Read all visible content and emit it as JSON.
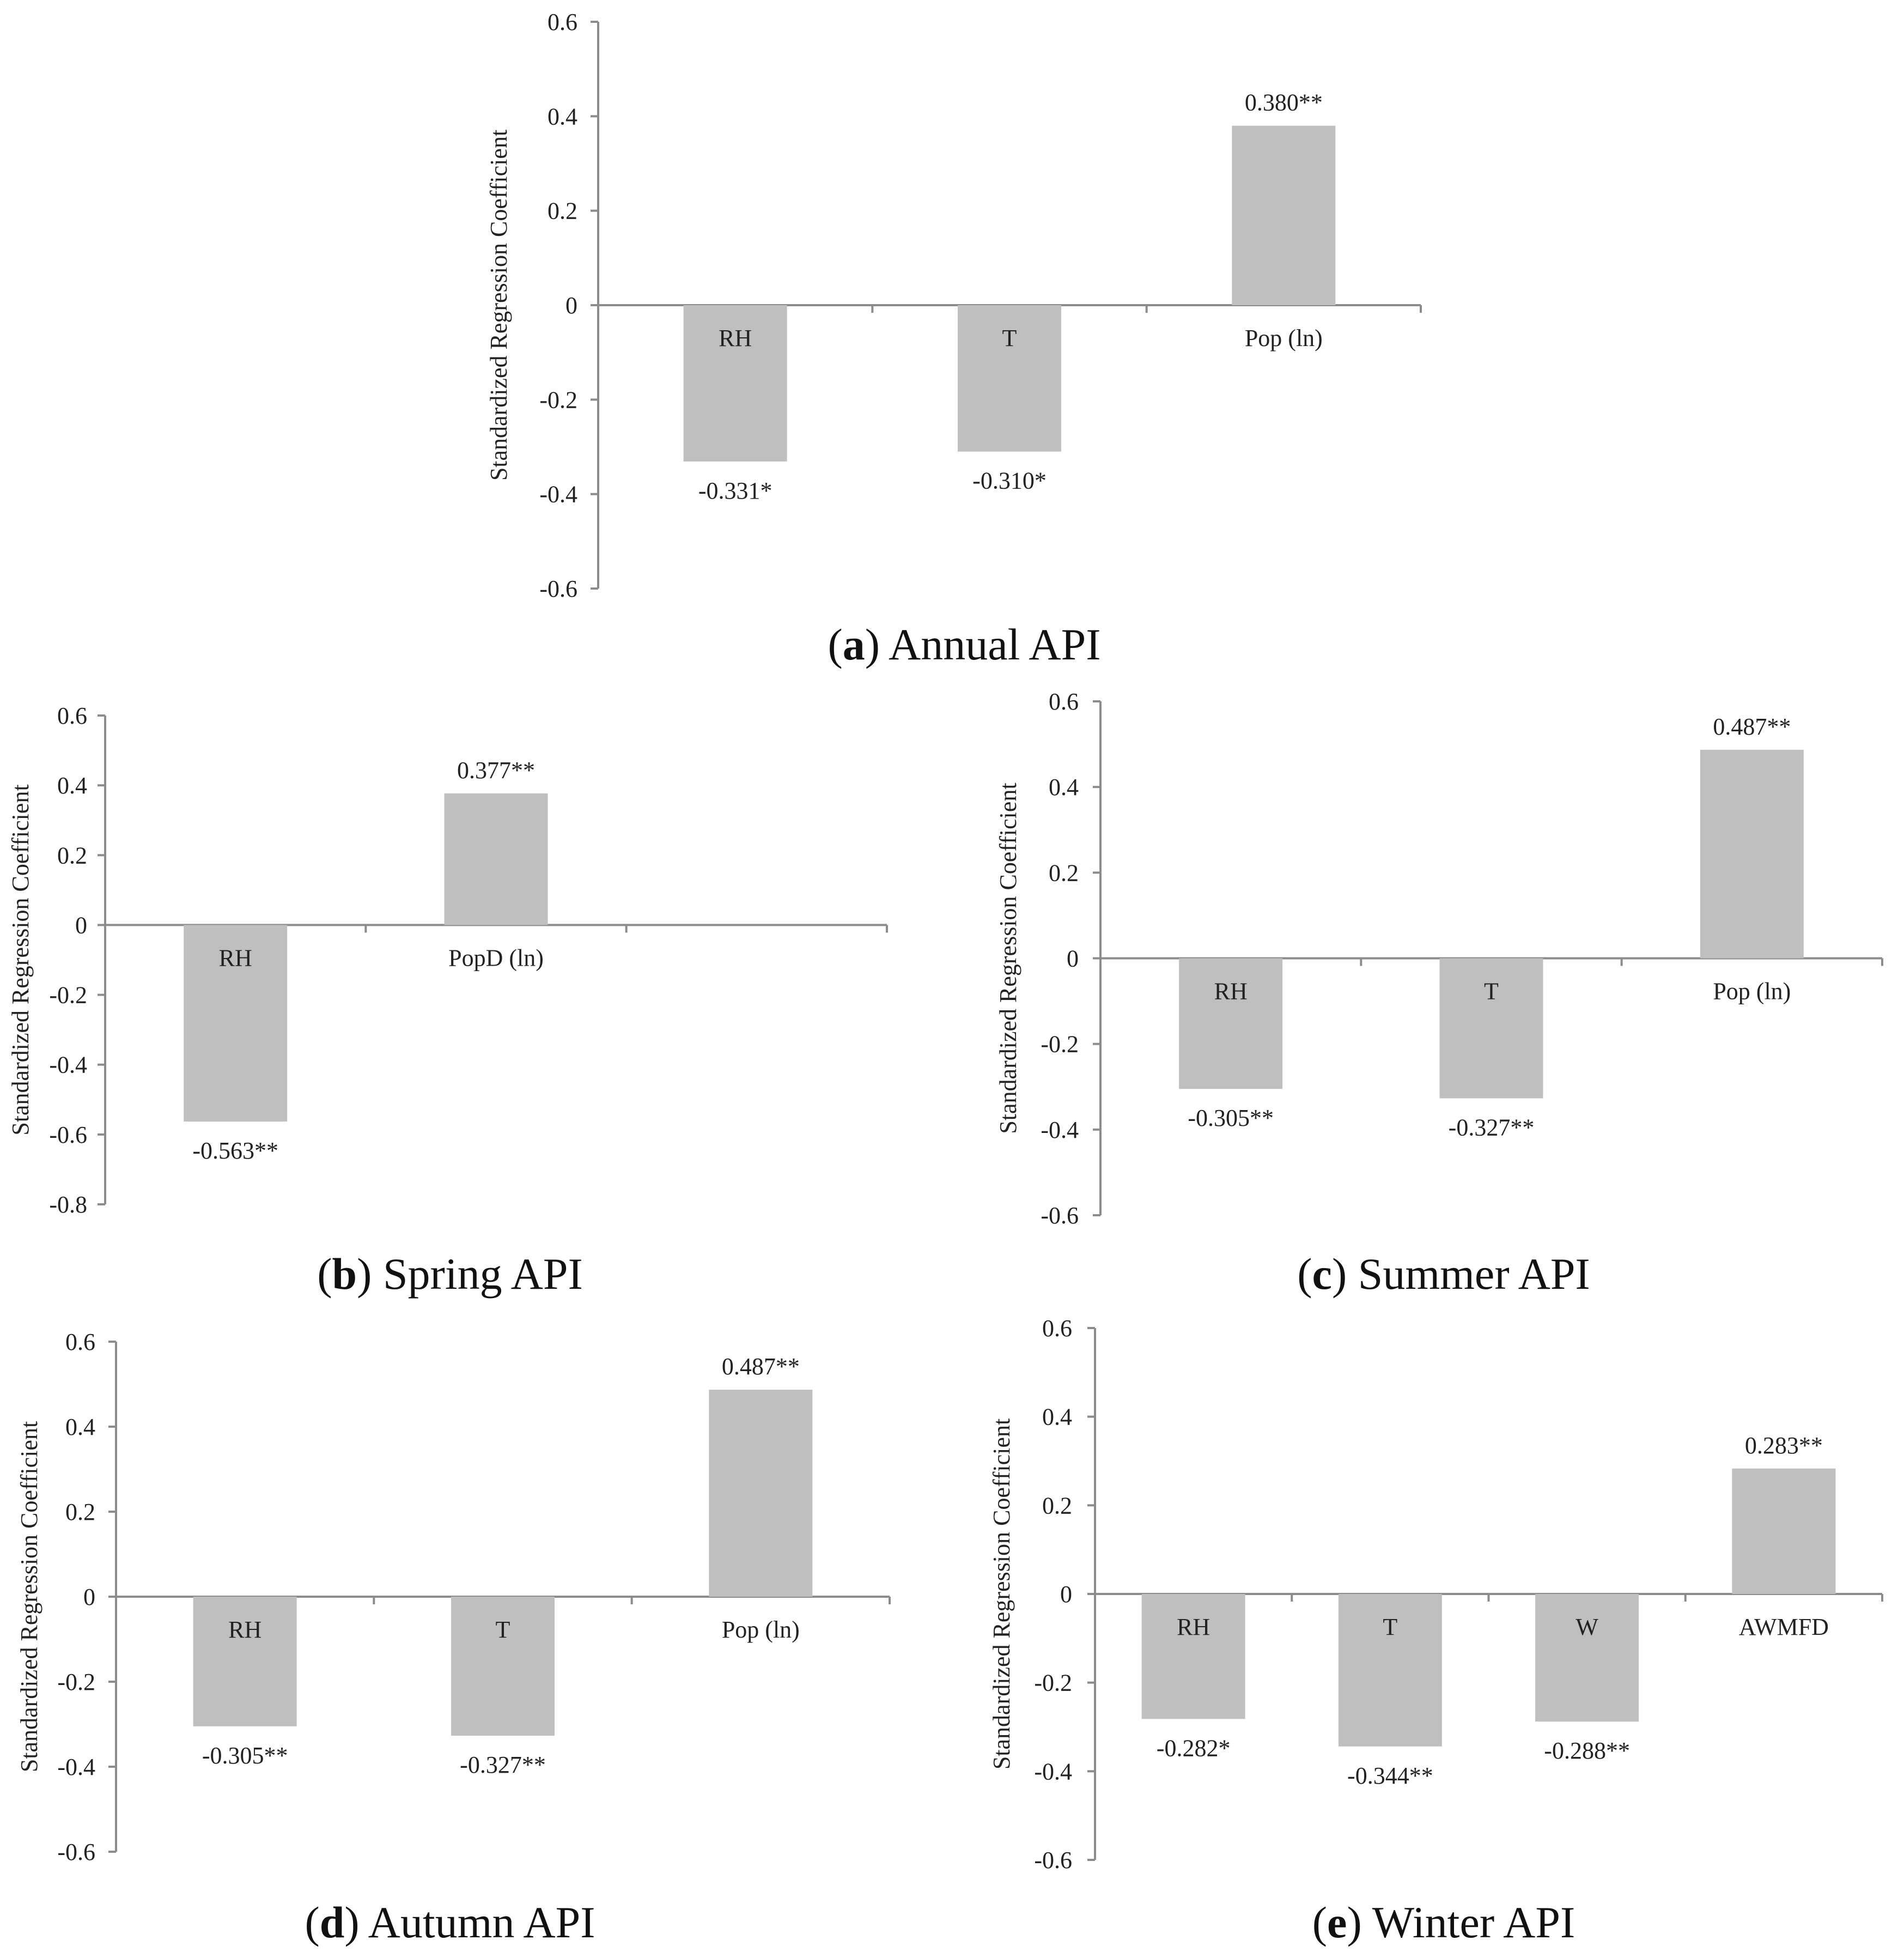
{
  "chart_data": [
    {
      "type": "bar",
      "panel": "a",
      "caption_letter": "a",
      "caption_text": "Annual API",
      "ylabel": "Standardized Regression Coefficient",
      "ylim": [
        -0.6,
        0.6
      ],
      "yticks": [
        "0.6",
        "0.4",
        "0.2",
        "0",
        "-0.2",
        "-0.4",
        "-0.6"
      ],
      "categories": [
        "RH",
        "T",
        "Pop (ln)"
      ],
      "values": [
        -0.331,
        -0.31,
        0.38
      ],
      "value_labels": [
        "-0.331*",
        "-0.310*",
        "0.380**"
      ]
    },
    {
      "type": "bar",
      "panel": "b",
      "caption_letter": "b",
      "caption_text": "Spring API",
      "ylabel": "Standardized Regression Coefficient",
      "ylim": [
        -0.8,
        0.6
      ],
      "yticks": [
        "0.6",
        "0.4",
        "0.2",
        "0",
        "-0.2",
        "-0.4",
        "-0.6",
        "-0.8"
      ],
      "categories": [
        "RH",
        "PopD (ln)",
        ""
      ],
      "values": [
        -0.563,
        0.377,
        null
      ],
      "value_labels": [
        "-0.563**",
        "0.377**",
        ""
      ]
    },
    {
      "type": "bar",
      "panel": "c",
      "caption_letter": "c",
      "caption_text": "Summer API",
      "ylabel": "Standardized Regression Coefficient",
      "ylim": [
        -0.6,
        0.6
      ],
      "yticks": [
        "0.6",
        "0.4",
        "0.2",
        "0",
        "-0.2",
        "-0.4",
        "-0.6"
      ],
      "categories": [
        "RH",
        "T",
        "Pop (ln)"
      ],
      "values": [
        -0.305,
        -0.327,
        0.487
      ],
      "value_labels": [
        "-0.305**",
        "-0.327**",
        "0.487**"
      ]
    },
    {
      "type": "bar",
      "panel": "d",
      "caption_letter": "d",
      "caption_text": "Autumn API",
      "ylabel": "Standardized Regression Coefficient",
      "ylim": [
        -0.6,
        0.6
      ],
      "yticks": [
        "0.6",
        "0.4",
        "0.2",
        "0",
        "-0.2",
        "-0.4",
        "-0.6"
      ],
      "categories": [
        "RH",
        "T",
        "Pop (ln)"
      ],
      "values": [
        -0.305,
        -0.327,
        0.487
      ],
      "value_labels": [
        "-0.305**",
        "-0.327**",
        "0.487**"
      ]
    },
    {
      "type": "bar",
      "panel": "e",
      "caption_letter": "e",
      "caption_text": "Winter API",
      "ylabel": "Standardized Regression Coefficient",
      "ylim": [
        -0.6,
        0.6
      ],
      "yticks": [
        "0.6",
        "0.4",
        "0.2",
        "0",
        "-0.2",
        "-0.4",
        "-0.6"
      ],
      "categories": [
        "RH",
        "T",
        "W",
        "AWMFD"
      ],
      "values": [
        -0.282,
        -0.344,
        -0.288,
        0.283
      ],
      "value_labels": [
        "-0.282*",
        "-0.344**",
        "-0.288**",
        "0.283**"
      ]
    }
  ]
}
